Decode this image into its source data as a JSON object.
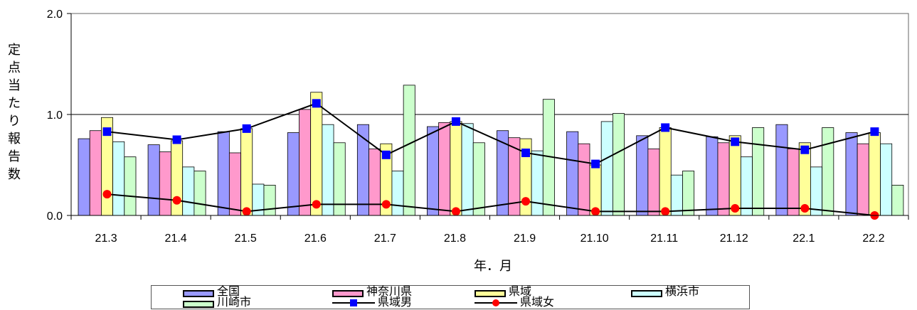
{
  "chart_data": {
    "type": "bar",
    "title": "",
    "xlabel": "年．月",
    "ylabel": "定点当たり報告数",
    "ylim": [
      0,
      2.0
    ],
    "yticks": [
      "0.0",
      "1.0",
      "2.0"
    ],
    "grid": true,
    "legend_position": "bottom",
    "categories": [
      "21.3",
      "21.4",
      "21.5",
      "21.6",
      "21.7",
      "21.8",
      "21.9",
      "21.10",
      "21.11",
      "21.12",
      "22.1",
      "22.2"
    ],
    "series": [
      {
        "name": "全国",
        "kind": "bar",
        "color": "#9999ff",
        "values": [
          0.76,
          0.7,
          0.83,
          0.82,
          0.9,
          0.88,
          0.84,
          0.83,
          0.79,
          0.78,
          0.9,
          0.82
        ]
      },
      {
        "name": "神奈川県",
        "kind": "bar",
        "color": "#ff99cc",
        "values": [
          0.84,
          0.63,
          0.62,
          1.05,
          0.66,
          0.92,
          0.77,
          0.71,
          0.66,
          0.72,
          0.66,
          0.71
        ]
      },
      {
        "name": "県域",
        "kind": "bar",
        "color": "#ffff99",
        "values": [
          0.97,
          0.74,
          0.86,
          1.22,
          0.71,
          0.93,
          0.76,
          0.5,
          0.87,
          0.79,
          0.72,
          0.82
        ]
      },
      {
        "name": "横浜市",
        "kind": "bar",
        "color": "#ccffff",
        "values": [
          0.73,
          0.48,
          0.31,
          0.9,
          0.44,
          0.91,
          0.64,
          0.93,
          0.4,
          0.58,
          0.48,
          0.71
        ]
      },
      {
        "name": "川崎市",
        "kind": "bar",
        "color": "#ccffcc",
        "values": [
          0.58,
          0.44,
          0.3,
          0.72,
          1.29,
          0.72,
          1.15,
          1.01,
          0.44,
          0.87,
          0.87,
          0.3
        ]
      },
      {
        "name": "県域男",
        "kind": "line",
        "color": "#0000ff",
        "marker": "square",
        "values": [
          0.83,
          0.75,
          0.86,
          1.11,
          0.6,
          0.93,
          0.62,
          0.51,
          0.87,
          0.73,
          0.65,
          0.83
        ]
      },
      {
        "name": "県域女",
        "kind": "line",
        "color": "#ff0000",
        "marker": "circle",
        "values": [
          0.21,
          0.15,
          0.04,
          0.11,
          0.11,
          0.04,
          0.14,
          0.04,
          0.04,
          0.07,
          0.07,
          0.0
        ]
      }
    ]
  },
  "colors": {
    "background": "#ffffff",
    "axis": "#000000",
    "gridline": "#000000",
    "bar_outline": "#000000"
  }
}
